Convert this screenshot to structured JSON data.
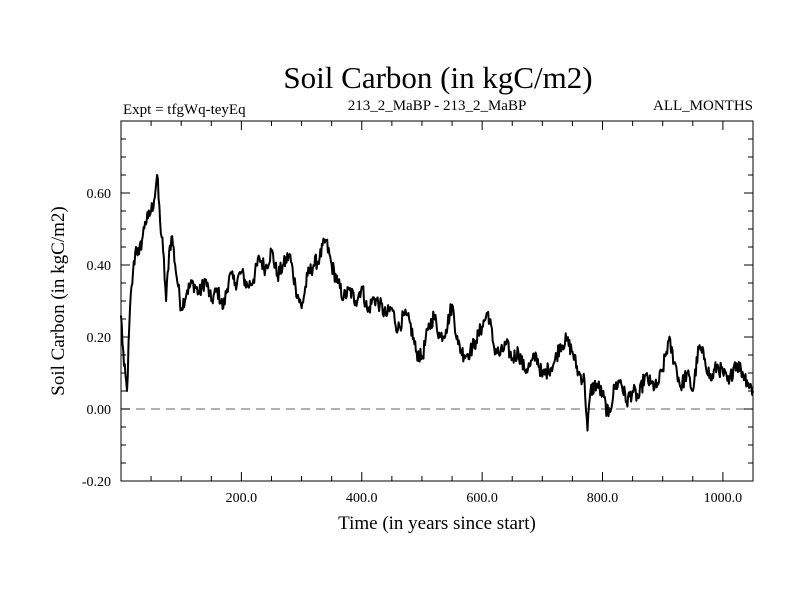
{
  "chart_data": {
    "type": "line",
    "title": "Soil Carbon (in kgC/m2)",
    "subtitle_left": "Expt = tfgWq-teyEq",
    "subtitle_center": "213_2_MaBP - 213_2_MaBP",
    "subtitle_right": "ALL_MONTHS",
    "xlabel": "Time (in years since start)",
    "ylabel": "Soil Carbon (in kgC/m2)",
    "xlim": [
      0,
      1050
    ],
    "ylim": [
      -0.2,
      0.8
    ],
    "xticks": [
      200,
      400,
      600,
      800,
      1000
    ],
    "xtick_labels": [
      "200.0",
      "400.0",
      "600.0",
      "800.0",
      "1000.0"
    ],
    "yticks": [
      -0.2,
      0.0,
      0.2,
      0.4,
      0.6
    ],
    "ytick_labels": [
      "-0.20",
      "0.00",
      "0.20",
      "0.40",
      "0.60"
    ],
    "reference_line": {
      "y": 0.0,
      "style": "dashed",
      "color": "#808080"
    },
    "series": [
      {
        "name": "Soil Carbon",
        "color": "#000000",
        "x": [
          0,
          5,
          10,
          15,
          20,
          25,
          30,
          35,
          40,
          45,
          50,
          55,
          60,
          65,
          70,
          75,
          80,
          85,
          90,
          95,
          100,
          110,
          120,
          130,
          140,
          150,
          160,
          170,
          180,
          190,
          200,
          210,
          220,
          230,
          240,
          250,
          260,
          270,
          280,
          290,
          300,
          310,
          320,
          330,
          340,
          350,
          360,
          370,
          380,
          390,
          400,
          410,
          420,
          430,
          440,
          450,
          460,
          470,
          480,
          490,
          500,
          510,
          520,
          530,
          540,
          550,
          560,
          570,
          580,
          590,
          600,
          610,
          620,
          630,
          640,
          650,
          660,
          670,
          680,
          690,
          700,
          710,
          720,
          730,
          740,
          750,
          760,
          770,
          775,
          780,
          790,
          800,
          810,
          820,
          830,
          840,
          850,
          860,
          870,
          880,
          890,
          900,
          910,
          920,
          930,
          940,
          950,
          960,
          970,
          980,
          990,
          1000,
          1010,
          1020,
          1030,
          1040,
          1050
        ],
        "values": [
          0.26,
          0.12,
          0.05,
          0.28,
          0.38,
          0.45,
          0.43,
          0.47,
          0.52,
          0.53,
          0.55,
          0.58,
          0.65,
          0.52,
          0.44,
          0.3,
          0.44,
          0.48,
          0.4,
          0.34,
          0.28,
          0.33,
          0.35,
          0.32,
          0.36,
          0.3,
          0.33,
          0.28,
          0.37,
          0.35,
          0.38,
          0.34,
          0.36,
          0.42,
          0.39,
          0.44,
          0.37,
          0.4,
          0.43,
          0.34,
          0.28,
          0.37,
          0.4,
          0.42,
          0.47,
          0.4,
          0.35,
          0.31,
          0.33,
          0.3,
          0.34,
          0.27,
          0.31,
          0.29,
          0.26,
          0.28,
          0.22,
          0.26,
          0.24,
          0.16,
          0.14,
          0.22,
          0.26,
          0.2,
          0.22,
          0.29,
          0.18,
          0.15,
          0.16,
          0.19,
          0.23,
          0.27,
          0.17,
          0.15,
          0.18,
          0.14,
          0.16,
          0.11,
          0.12,
          0.15,
          0.09,
          0.11,
          0.13,
          0.18,
          0.19,
          0.16,
          0.1,
          0.08,
          -0.06,
          0.05,
          0.07,
          0.04,
          -0.02,
          0.06,
          0.08,
          0.02,
          0.05,
          0.03,
          0.09,
          0.07,
          0.06,
          0.11,
          0.19,
          0.13,
          0.06,
          0.1,
          0.05,
          0.17,
          0.14,
          0.08,
          0.12,
          0.1,
          0.07,
          0.13,
          0.11,
          0.08,
          0.05
        ]
      }
    ]
  }
}
